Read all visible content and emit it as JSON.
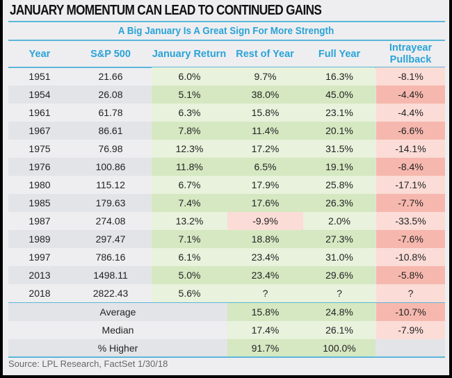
{
  "title": "JANUARY MOMENTUM CAN LEAD TO CONTINUED GAINS",
  "subtitle": "A Big January Is A Great Sign For More Strength",
  "source": "Source: LPL Research, FactSet  1/30/18",
  "colors": {
    "accent": "#2aa3d6",
    "green_light": "#e8f2dc",
    "green_dark": "#d5e8c2",
    "red_light": "#fbdcd7",
    "red_dark": "#f6b8ae",
    "row_alt": "#e3e4e7",
    "background": "#eeeef1"
  },
  "chart_data": {
    "type": "table",
    "title": "JANUARY MOMENTUM CAN LEAD TO CONTINUED GAINS",
    "subtitle": "A Big January Is A Great Sign For More Strength",
    "columns": [
      "Year",
      "S&P 500",
      "January Return",
      "Rest of Year",
      "Full Year",
      "Intrayear Pullback"
    ],
    "rows": [
      [
        "1951",
        "21.66",
        "6.0%",
        "9.7%",
        "16.3%",
        "-8.1%"
      ],
      [
        "1954",
        "26.08",
        "5.1%",
        "38.0%",
        "45.0%",
        "-4.4%"
      ],
      [
        "1961",
        "61.78",
        "6.3%",
        "15.8%",
        "23.1%",
        "-4.4%"
      ],
      [
        "1967",
        "86.61",
        "7.8%",
        "11.4%",
        "20.1%",
        "-6.6%"
      ],
      [
        "1975",
        "76.98",
        "12.3%",
        "17.2%",
        "31.5%",
        "-14.1%"
      ],
      [
        "1976",
        "100.86",
        "11.8%",
        "6.5%",
        "19.1%",
        "-8.4%"
      ],
      [
        "1980",
        "115.12",
        "6.7%",
        "17.9%",
        "25.8%",
        "-17.1%"
      ],
      [
        "1985",
        "179.63",
        "7.4%",
        "17.6%",
        "26.3%",
        "-7.7%"
      ],
      [
        "1987",
        "274.08",
        "13.2%",
        "-9.9%",
        "2.0%",
        "-33.5%"
      ],
      [
        "1989",
        "297.47",
        "7.1%",
        "18.8%",
        "27.3%",
        "-7.6%"
      ],
      [
        "1997",
        "786.16",
        "6.1%",
        "23.4%",
        "31.0%",
        "-10.8%"
      ],
      [
        "2013",
        "1498.11",
        "5.0%",
        "23.4%",
        "29.6%",
        "-5.8%"
      ],
      [
        "2018",
        "2822.43",
        "5.6%",
        "?",
        "?",
        "?"
      ]
    ],
    "summary": [
      {
        "label": "Average",
        "rest_of_year": "15.8%",
        "full_year": "24.8%",
        "pullback": "-10.7%"
      },
      {
        "label": "Median",
        "rest_of_year": "17.4%",
        "full_year": "26.1%",
        "pullback": "-7.9%"
      },
      {
        "label": "% Higher",
        "rest_of_year": "91.7%",
        "full_year": "100.0%",
        "pullback": ""
      }
    ]
  }
}
